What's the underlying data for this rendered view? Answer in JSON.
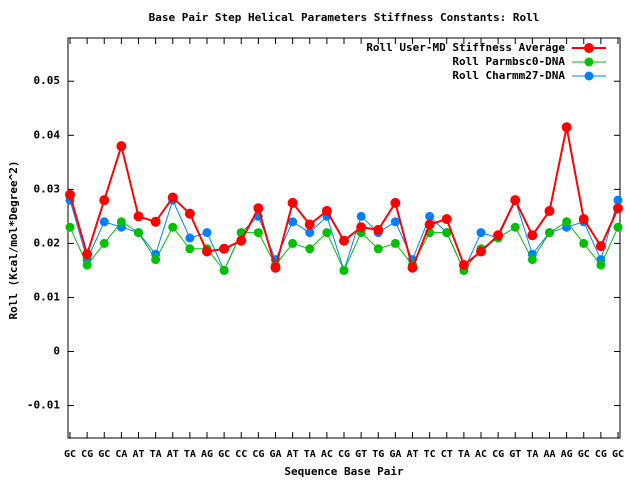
{
  "chart_data": {
    "type": "line",
    "title": "Base Pair Step Helical Parameters Stiffness Constants: Roll",
    "xlabel": "Sequence Base Pair",
    "ylabel": "Roll (Kcal/mol*Degree^2)",
    "categories": [
      "GC",
      "CG",
      "GC",
      "CA",
      "AT",
      "TA",
      "AT",
      "TA",
      "AG",
      "GC",
      "CC",
      "CG",
      "GA",
      "AT",
      "TA",
      "AC",
      "CG",
      "GT",
      "TG",
      "GA",
      "AT",
      "TC",
      "CT",
      "TA",
      "AC",
      "CG",
      "GT",
      "TA",
      "AA",
      "AG",
      "GC",
      "CG",
      "GC"
    ],
    "series": [
      {
        "name": "Roll User-MD Stiffness Average",
        "color": "#ff0000",
        "values": [
          0.029,
          0.018,
          0.028,
          0.038,
          0.025,
          0.024,
          0.0285,
          0.0255,
          0.0185,
          0.019,
          0.0205,
          0.0265,
          0.0155,
          0.0275,
          0.0235,
          0.026,
          0.0205,
          0.023,
          0.0225,
          0.0275,
          0.0155,
          0.0235,
          0.0245,
          0.016,
          0.0185,
          0.0215,
          0.028,
          0.0215,
          0.026,
          0.0415,
          0.0245,
          0.0195,
          0.0265
        ]
      },
      {
        "name": "Roll Parmbsc0-DNA",
        "color": "#00c000",
        "values": [
          0.023,
          0.016,
          0.02,
          0.024,
          0.022,
          0.017,
          0.023,
          0.019,
          0.019,
          0.015,
          0.022,
          0.022,
          0.016,
          0.02,
          0.019,
          0.022,
          0.015,
          0.022,
          0.019,
          0.02,
          0.016,
          0.022,
          0.022,
          0.015,
          0.019,
          0.021,
          0.023,
          0.017,
          0.022,
          0.024,
          0.02,
          0.016,
          0.023
        ]
      },
      {
        "name": "Roll Charmm27-DNA",
        "color": "#0080ff",
        "values": [
          0.028,
          0.017,
          0.024,
          0.023,
          0.022,
          0.018,
          0.028,
          0.021,
          0.022,
          0.015,
          0.022,
          0.025,
          0.017,
          0.024,
          0.022,
          0.025,
          0.015,
          0.025,
          0.022,
          0.024,
          0.017,
          0.025,
          0.022,
          0.015,
          0.022,
          0.021,
          0.028,
          0.018,
          0.022,
          0.023,
          0.024,
          0.017,
          0.028
        ]
      }
    ],
    "ylim": [
      -0.016,
      0.058
    ],
    "yticks": [
      -0.01,
      0,
      0.01,
      0.02,
      0.03,
      0.04,
      0.05
    ],
    "legend": "top-right"
  }
}
